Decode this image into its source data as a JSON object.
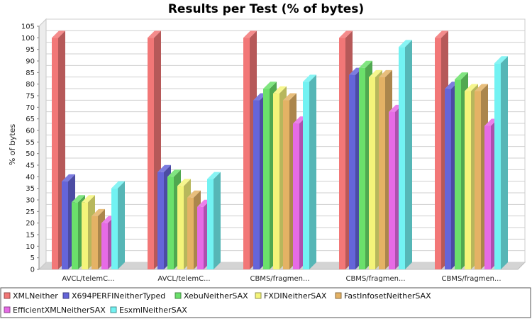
{
  "chart_data": {
    "type": "bar",
    "title": "Results per Test (% of bytes)",
    "xlabel": "",
    "ylabel": "% of bytes",
    "ylim": [
      0,
      105
    ],
    "y_ticks": [
      0,
      5,
      10,
      15,
      20,
      25,
      30,
      35,
      40,
      45,
      50,
      55,
      60,
      65,
      70,
      75,
      80,
      85,
      90,
      95,
      100,
      105
    ],
    "grid": true,
    "legend_position": "bottom",
    "categories": [
      "AVCL/telemC...",
      "AVCL/telemC...",
      "CBMS/fragmen...",
      "CBMS/fragmen...",
      "CBMS/fragmen..."
    ],
    "series": [
      {
        "name": "XMLNeither",
        "color": "#f27777",
        "values": [
          100,
          100,
          100,
          100,
          100
        ]
      },
      {
        "name": "X694PERFINeitherTyped",
        "color": "#6565d9",
        "values": [
          38,
          42,
          73,
          84,
          78
        ]
      },
      {
        "name": "XebuNeitherSAX",
        "color": "#6be06b",
        "values": [
          29,
          40,
          78,
          87,
          82
        ]
      },
      {
        "name": "FXDINeitherSAX",
        "color": "#f4f47a",
        "values": [
          29,
          36,
          76,
          83,
          77
        ]
      },
      {
        "name": "FastInfosetNeitherSAX",
        "color": "#e4b265",
        "values": [
          23,
          31,
          73,
          83,
          77
        ]
      },
      {
        "name": "EfficientXMLNeitherSAX",
        "color": "#e66be6",
        "values": [
          20,
          27,
          63,
          68,
          62
        ]
      },
      {
        "name": "EsxmlNeitherSAX",
        "color": "#72f2f2",
        "values": [
          35,
          39,
          81,
          96,
          89
        ]
      }
    ]
  }
}
